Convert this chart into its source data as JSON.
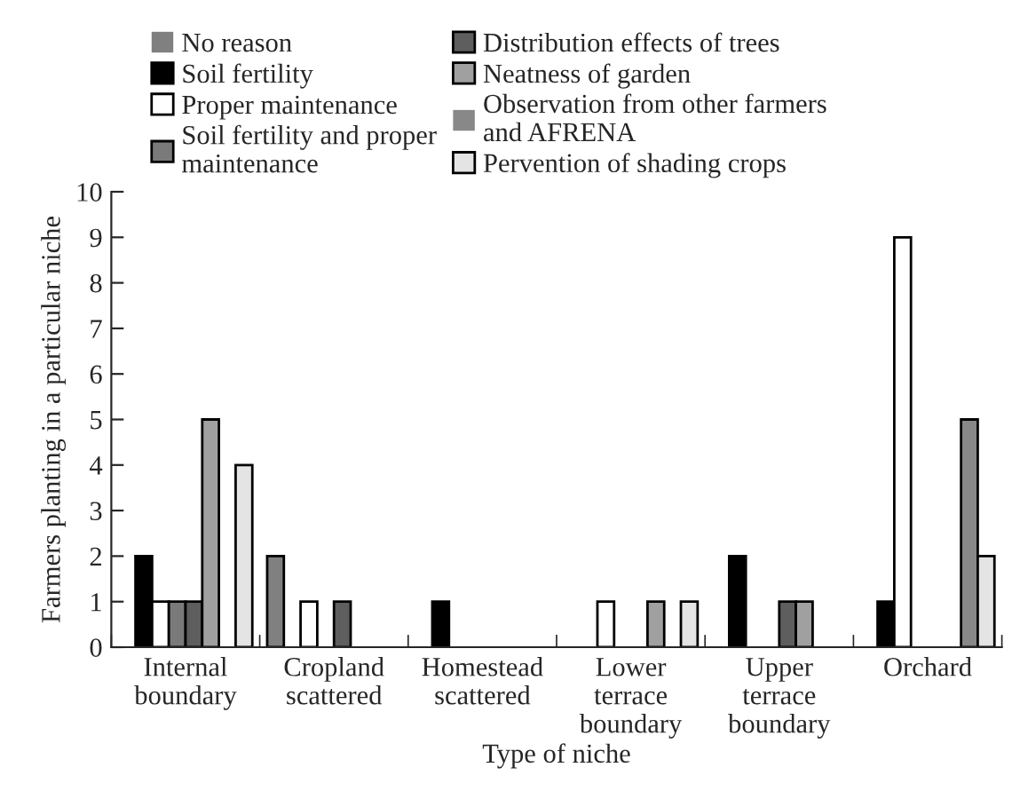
{
  "chart_data": {
    "type": "bar",
    "xlabel": "Type of niche",
    "ylabel": "Farmers planting in a particular niche",
    "categories": [
      "Internal\nboundary",
      "Cropland\nscattered",
      "Homestead\nscattered",
      "Lower\nterrace\nboundary",
      "Upper\nterrace\nboundary",
      "Orchard"
    ],
    "series": [
      {
        "name": "No reason",
        "color": "#808080",
        "values": [
          0,
          2,
          0,
          0,
          0,
          0
        ]
      },
      {
        "name": "Soil fertility",
        "color": "#000000",
        "values": [
          2,
          0,
          1,
          0,
          2,
          1
        ]
      },
      {
        "name": "Proper maintenance",
        "color": "#ffffff",
        "values": [
          1,
          1,
          0,
          1,
          0,
          9
        ]
      },
      {
        "name": "Soil fertility and proper\nmaintenance",
        "color": "#7a7a7a",
        "values": [
          1,
          0,
          0,
          0,
          0,
          0
        ]
      },
      {
        "name": "Distribution effects of trees",
        "color": "#5e5e5e",
        "values": [
          1,
          1,
          0,
          0,
          1,
          0
        ]
      },
      {
        "name": "Neatness of garden",
        "color": "#a0a0a0",
        "values": [
          5,
          0,
          0,
          1,
          1,
          0
        ]
      },
      {
        "name": "Observation from other farmers\nand AFRENA",
        "color": "#888888",
        "values": [
          0,
          0,
          0,
          0,
          0,
          5
        ]
      },
      {
        "name": "Pervention of shading crops",
        "color": "#e4e4e4",
        "values": [
          4,
          0,
          0,
          1,
          0,
          2
        ]
      }
    ],
    "ylim": [
      0,
      10
    ],
    "yticks": [
      0,
      1,
      2,
      3,
      4,
      5,
      6,
      7,
      8,
      9,
      10
    ],
    "legend": "top",
    "grid": false
  }
}
